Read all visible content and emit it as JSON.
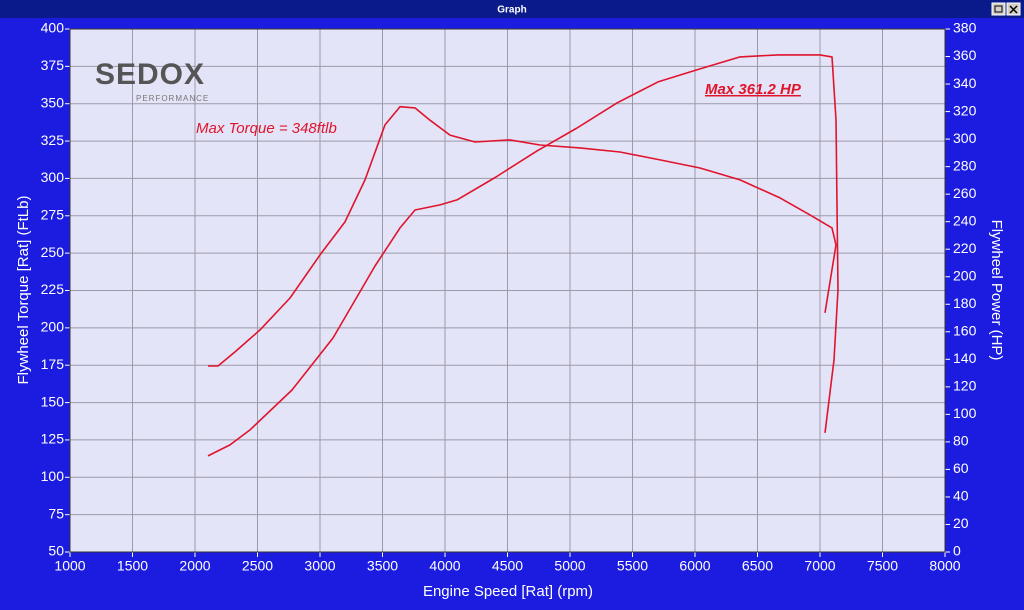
{
  "window_title": "Graph",
  "chart_data": {
    "type": "line",
    "logo": [
      "SEDOX",
      "PERFORMANCE"
    ],
    "annotations": [
      "Max Torque = 348ftlb",
      "Max 361.2 HP"
    ],
    "xlabel": "Engine Speed [Rat] (rpm)",
    "ylabel": "Flywheel Torque [Rat] (FtLb)",
    "y2label": "Flywheel Power (HP)",
    "xlim": [
      1000,
      8000
    ],
    "xticks": [
      1000,
      1500,
      2000,
      2500,
      3000,
      3500,
      4000,
      4500,
      5000,
      5500,
      6000,
      6500,
      7000,
      7500,
      8000
    ],
    "ylim": [
      50,
      400
    ],
    "yticks": [
      50,
      75,
      100,
      125,
      150,
      175,
      200,
      225,
      250,
      275,
      300,
      325,
      350,
      375,
      400
    ],
    "y2lim": [
      0,
      380
    ],
    "y2ticks": [
      0,
      20,
      40,
      60,
      80,
      100,
      120,
      140,
      160,
      180,
      200,
      220,
      240,
      260,
      280,
      300,
      320,
      340,
      360,
      380
    ],
    "grid": true,
    "series": [
      {
        "color": "#e0142c",
        "axis": "y",
        "x": [
          2104,
          2184,
          2320,
          2520,
          2760,
          3000,
          3200,
          3360,
          3520,
          3640,
          3760,
          3880,
          4040,
          4240,
          4520,
          4760,
          5080,
          5400,
          5720,
          6040,
          6360,
          6680,
          6920,
          7096,
          7128,
          7040
        ],
        "values": [
          174.5,
          174.5,
          183.9,
          198.6,
          220,
          248.8,
          270.9,
          299,
          335.8,
          348,
          347.2,
          339,
          329,
          324.4,
          325.8,
          322.4,
          320.4,
          317.7,
          312.4,
          307,
          299,
          287,
          275.6,
          266.9,
          255.5,
          210
        ]
      },
      {
        "color": "#e0142c",
        "axis": "y2",
        "x": [
          2104,
          2280,
          2440,
          2776,
          3104,
          3440,
          3640,
          3760,
          3960,
          4096,
          4408,
          4736,
          5056,
          5376,
          5704,
          6040,
          6360,
          6664,
          7000,
          7096,
          7128,
          7144,
          7112,
          7040
        ],
        "values": [
          69.8,
          77.8,
          88.7,
          117.7,
          155.5,
          207.8,
          235.5,
          248.5,
          252.2,
          255.8,
          272.5,
          291.4,
          308.1,
          326.3,
          341.6,
          351,
          359.7,
          361.2,
          361.2,
          359.7,
          314,
          190.4,
          139.5,
          86.5
        ]
      }
    ]
  }
}
